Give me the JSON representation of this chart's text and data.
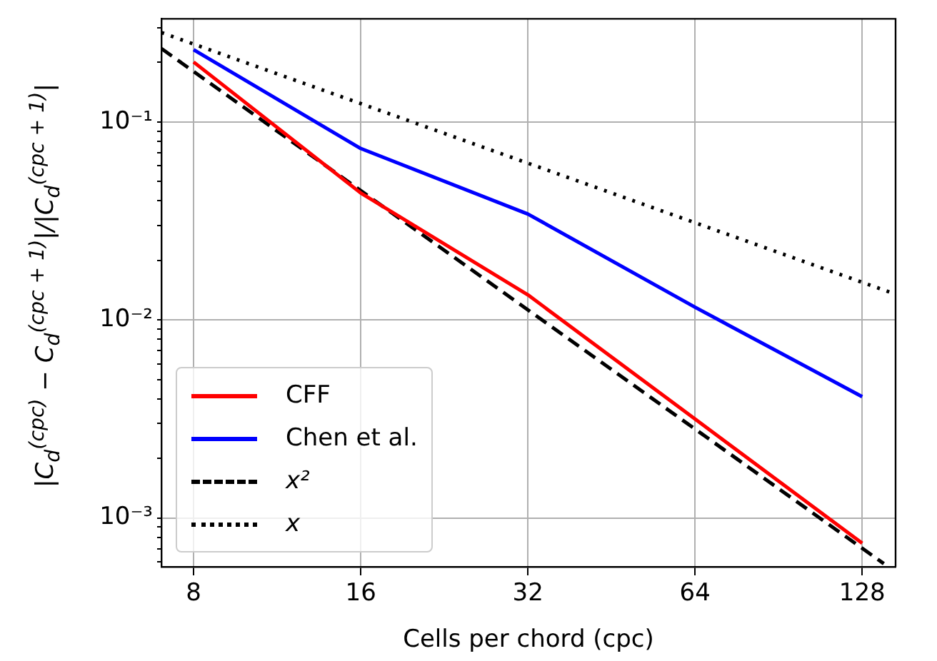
{
  "chart_data": {
    "type": "line",
    "xlabel": "Cells per chord (cpc)",
    "ylabel": "|C$_{d}$$^{(cpc)}$ − C$_{d}$$^{(cpc + 1)}$|/|C$_{d}$$^{(cpc + 1)}$|",
    "log": "xy",
    "grid": true,
    "legend": "bottom left",
    "xlim": [
      7,
      147
    ],
    "ylim": [
      0.000567,
      0.332
    ],
    "xticks": [
      8,
      16,
      32,
      64,
      128
    ],
    "yticks": [
      {
        "value": 0.0006,
        "label": null
      },
      {
        "value": 0.0007,
        "label": null
      },
      {
        "value": 0.0008,
        "label": null
      },
      {
        "value": 0.0009,
        "label": null
      },
      {
        "value": 0.001,
        "label": "10⁻³"
      },
      {
        "value": 0.002,
        "label": null
      },
      {
        "value": 0.003,
        "label": null
      },
      {
        "value": 0.004,
        "label": null
      },
      {
        "value": 0.005,
        "label": null
      },
      {
        "value": 0.006,
        "label": null
      },
      {
        "value": 0.007,
        "label": null
      },
      {
        "value": 0.008,
        "label": null
      },
      {
        "value": 0.009,
        "label": null
      },
      {
        "value": 0.01,
        "label": "10⁻²"
      },
      {
        "value": 0.02,
        "label": null
      },
      {
        "value": 0.03,
        "label": null
      },
      {
        "value": 0.04,
        "label": null
      },
      {
        "value": 0.05,
        "label": null
      },
      {
        "value": 0.06,
        "label": null
      },
      {
        "value": 0.07,
        "label": null
      },
      {
        "value": 0.08,
        "label": null
      },
      {
        "value": 0.09,
        "label": null
      },
      {
        "value": 0.1,
        "label": "10⁻¹"
      },
      {
        "value": 0.2,
        "label": null
      },
      {
        "value": 0.3,
        "label": null
      }
    ],
    "series": [
      {
        "name": "CFF",
        "color": "#ff0000",
        "line_style": "solid",
        "x": [
          8,
          16,
          32,
          64,
          128
        ],
        "values": [
          0.201,
          0.0438,
          0.0134,
          0.00316,
          0.000746
        ]
      },
      {
        "name": "Chen et al.",
        "color": "#0000ff",
        "line_style": "solid",
        "x": [
          8,
          16,
          32,
          64,
          128
        ],
        "values": [
          0.232,
          0.0735,
          0.0343,
          0.0116,
          0.0041
        ]
      },
      {
        "name": "x²",
        "color": "#000000",
        "line_style": "dashed",
        "x": [
          7,
          140
        ],
        "values": [
          0.235,
          0.000588
        ]
      },
      {
        "name": "x",
        "color": "#000000",
        "line_style": "dotted",
        "x": [
          7,
          147
        ],
        "values": [
          0.283,
          0.0135
        ]
      }
    ]
  }
}
